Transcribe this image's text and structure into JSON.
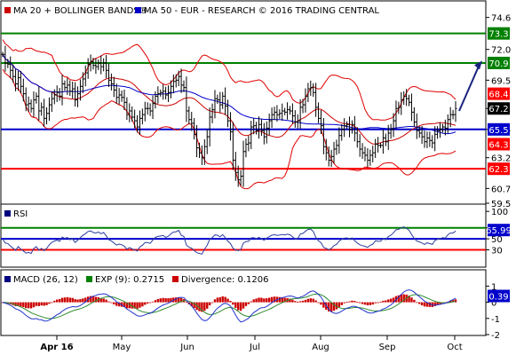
{
  "chart_data": [
    {
      "type": "line",
      "panel": "price",
      "legend": [
        {
          "marker_color": "#cc0000",
          "text": "MA 20 + BOLLINGER BANDS®"
        },
        {
          "marker_color": "#0000cc",
          "text": "MA 50 - EUR - RESEARCH © 2016 TRADING CENTRAL"
        }
      ],
      "x_labels": [
        "Apr 16",
        "May",
        "Jun",
        "Jul",
        "Aug",
        "Sep",
        "Oct"
      ],
      "y_ticks": [
        "74.6",
        "72.0",
        "69.5",
        "67.2",
        "65.5",
        "63.2",
        "60.7",
        "59.5"
      ],
      "ylim": [
        59.5,
        75.8
      ],
      "levels": [
        {
          "value": 73.3,
          "label": "73.3",
          "color": "#008000"
        },
        {
          "value": 70.9,
          "label": "70.9",
          "color": "#008000"
        },
        {
          "value": 65.5,
          "label": "65.5",
          "color": "#0000cc"
        },
        {
          "value": 62.3,
          "label": "62.3",
          "color": "#ff0000"
        }
      ],
      "tags": [
        {
          "value": 68.4,
          "label": "68.4",
          "color": "#ff0000"
        },
        {
          "value": 67.2,
          "label": "67.2",
          "color": "#000000"
        },
        {
          "value": 64.3,
          "label": "64.3",
          "color": "#ff0000"
        }
      ],
      "forecast_arrow": {
        "from": 67.0,
        "to": 70.8,
        "color": "#1a237e"
      },
      "closes": [
        71.6,
        70.9,
        70.8,
        70.3,
        69.8,
        69.2,
        69.7,
        69.0,
        68.4,
        67.5,
        67.6,
        67.2,
        67.9,
        68.2,
        67.0,
        67.3,
        66.4,
        66.8,
        67.5,
        68.0,
        68.3,
        68.5,
        68.2,
        69.2,
        68.9,
        69.1,
        68.6,
        68.8,
        67.9,
        68.4,
        69.0,
        69.6,
        70.1,
        70.8,
        71.0,
        70.7,
        70.6,
        70.9,
        70.6,
        70.9,
        70.3,
        69.5,
        69.2,
        68.7,
        68.1,
        68.3,
        68.1,
        67.7,
        66.7,
        67.0,
        66.5,
        66.2,
        65.7,
        66.4,
        66.7,
        67.2,
        67.2,
        67.0,
        67.6,
        68.2,
        68.4,
        68.5,
        68.6,
        68.3,
        68.5,
        69.0,
        69.4,
        69.5,
        69.8,
        69.1,
        68.9,
        67.0,
        66.3,
        66.0,
        65.1,
        64.0,
        63.6,
        63.2,
        64.1,
        64.9,
        66.5,
        67.1,
        68.0,
        67.9,
        67.5,
        68.2,
        67.4,
        66.2,
        65.3,
        63.0,
        62.0,
        61.4,
        61.7,
        63.7,
        64.3,
        64.4,
        65.7,
        65.8,
        65.4,
        65.9,
        65.4,
        64.9,
        65.6,
        66.2,
        66.7,
        66.9,
        66.7,
        66.8,
        67.0,
        66.9,
        67.1,
        67.0,
        66.6,
        66.1,
        66.2,
        67.3,
        67.5,
        68.2,
        68.8,
        68.9,
        68.5,
        67.3,
        66.4,
        65.8,
        64.1,
        63.6,
        63.0,
        63.3,
        63.9,
        64.2,
        65.0,
        65.5,
        65.8,
        65.9,
        65.5,
        65.9,
        65.2,
        64.5,
        63.9,
        63.6,
        63.4,
        63.0,
        63.4,
        63.6,
        64.3,
        64.2,
        64.2,
        64.8,
        64.5,
        65.2,
        65.5,
        66.2,
        67.2,
        67.3,
        67.9,
        68.2,
        68.0,
        67.7,
        66.9,
        66.1,
        65.4,
        65.2,
        64.9,
        64.5,
        64.8,
        64.6,
        64.4,
        65.1,
        65.4,
        65.5,
        65.7,
        65.6,
        66.3,
        66.7,
        66.7,
        67.2
      ],
      "series": []
    },
    {
      "type": "line",
      "panel": "rsi",
      "legend": [
        {
          "marker_color": "#000080",
          "text": "RSI"
        }
      ],
      "y_ticks": [
        "100",
        "70",
        "50",
        "30"
      ],
      "ylim": [
        0,
        110
      ],
      "levels": [
        {
          "value": 70,
          "color": "#008000"
        },
        {
          "value": 50,
          "color": "#0000cc"
        },
        {
          "value": 30,
          "color": "#ff0000"
        }
      ],
      "tag": {
        "value": 65.99,
        "label": "65.99",
        "color": "#0000cc"
      }
    },
    {
      "type": "bar",
      "panel": "macd",
      "legend": [
        {
          "marker_color": "#000080",
          "text": "MACD (26, 12)"
        },
        {
          "marker_color": "#008000",
          "text": "EXP (9): 0.2715"
        },
        {
          "marker_color": "#cc0000",
          "text": "Divergence: 0.1206"
        }
      ],
      "y_ticks": [
        "1",
        "0",
        "-1",
        "-2"
      ],
      "ylim": [
        -2.0,
        1.9
      ],
      "tag": {
        "value": 0.39,
        "label": "0.39",
        "color": "#0000cc"
      }
    }
  ]
}
